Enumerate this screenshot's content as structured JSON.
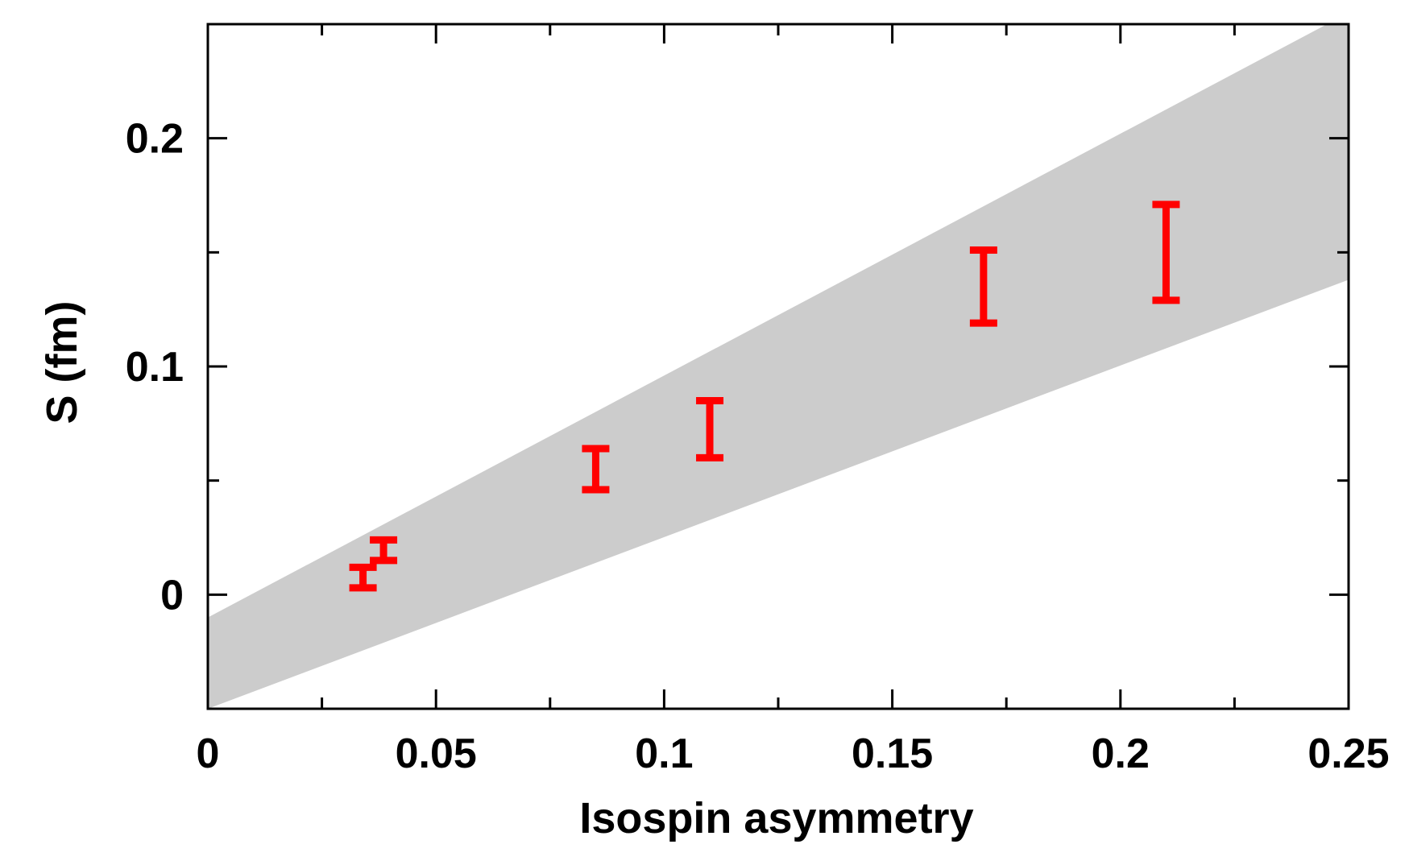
{
  "chart_data": {
    "type": "scatter",
    "xlabel": "Isospin asymmetry",
    "ylabel": "S (fm)",
    "xlim": [
      0,
      0.25
    ],
    "ylim": [
      -0.05,
      0.25
    ],
    "grid": false,
    "x_ticks": [
      {
        "value": 0,
        "label": "0"
      },
      {
        "value": 0.05,
        "label": "0.05"
      },
      {
        "value": 0.1,
        "label": "0.1"
      },
      {
        "value": 0.15,
        "label": "0.15"
      },
      {
        "value": 0.2,
        "label": "0.2"
      },
      {
        "value": 0.25,
        "label": "0.25"
      }
    ],
    "x_minor_ticks": [
      0.025,
      0.075,
      0.125,
      0.175,
      0.225
    ],
    "y_ticks": [
      {
        "value": 0,
        "label": "0"
      },
      {
        "value": 0.1,
        "label": "0.1"
      },
      {
        "value": 0.2,
        "label": "0.2"
      }
    ],
    "y_minor_ticks": [
      0.05,
      0.15
    ],
    "band": {
      "color": "#cccccc",
      "upper": [
        [
          0,
          -0.01
        ],
        [
          0.25,
          0.255
        ]
      ],
      "lower": [
        [
          0,
          -0.05
        ],
        [
          0.25,
          0.138
        ]
      ]
    },
    "series": [
      {
        "color": "#ff0000",
        "points": [
          {
            "x": 0.034,
            "ylow": 0.003,
            "yhigh": 0.012
          },
          {
            "x": 0.0385,
            "ylow": 0.015,
            "yhigh": 0.024
          },
          {
            "x": 0.085,
            "ylow": 0.046,
            "yhigh": 0.064
          },
          {
            "x": 0.11,
            "ylow": 0.06,
            "yhigh": 0.085
          },
          {
            "x": 0.17,
            "ylow": 0.119,
            "yhigh": 0.151
          },
          {
            "x": 0.21,
            "ylow": 0.129,
            "yhigh": 0.171
          }
        ]
      }
    ]
  }
}
